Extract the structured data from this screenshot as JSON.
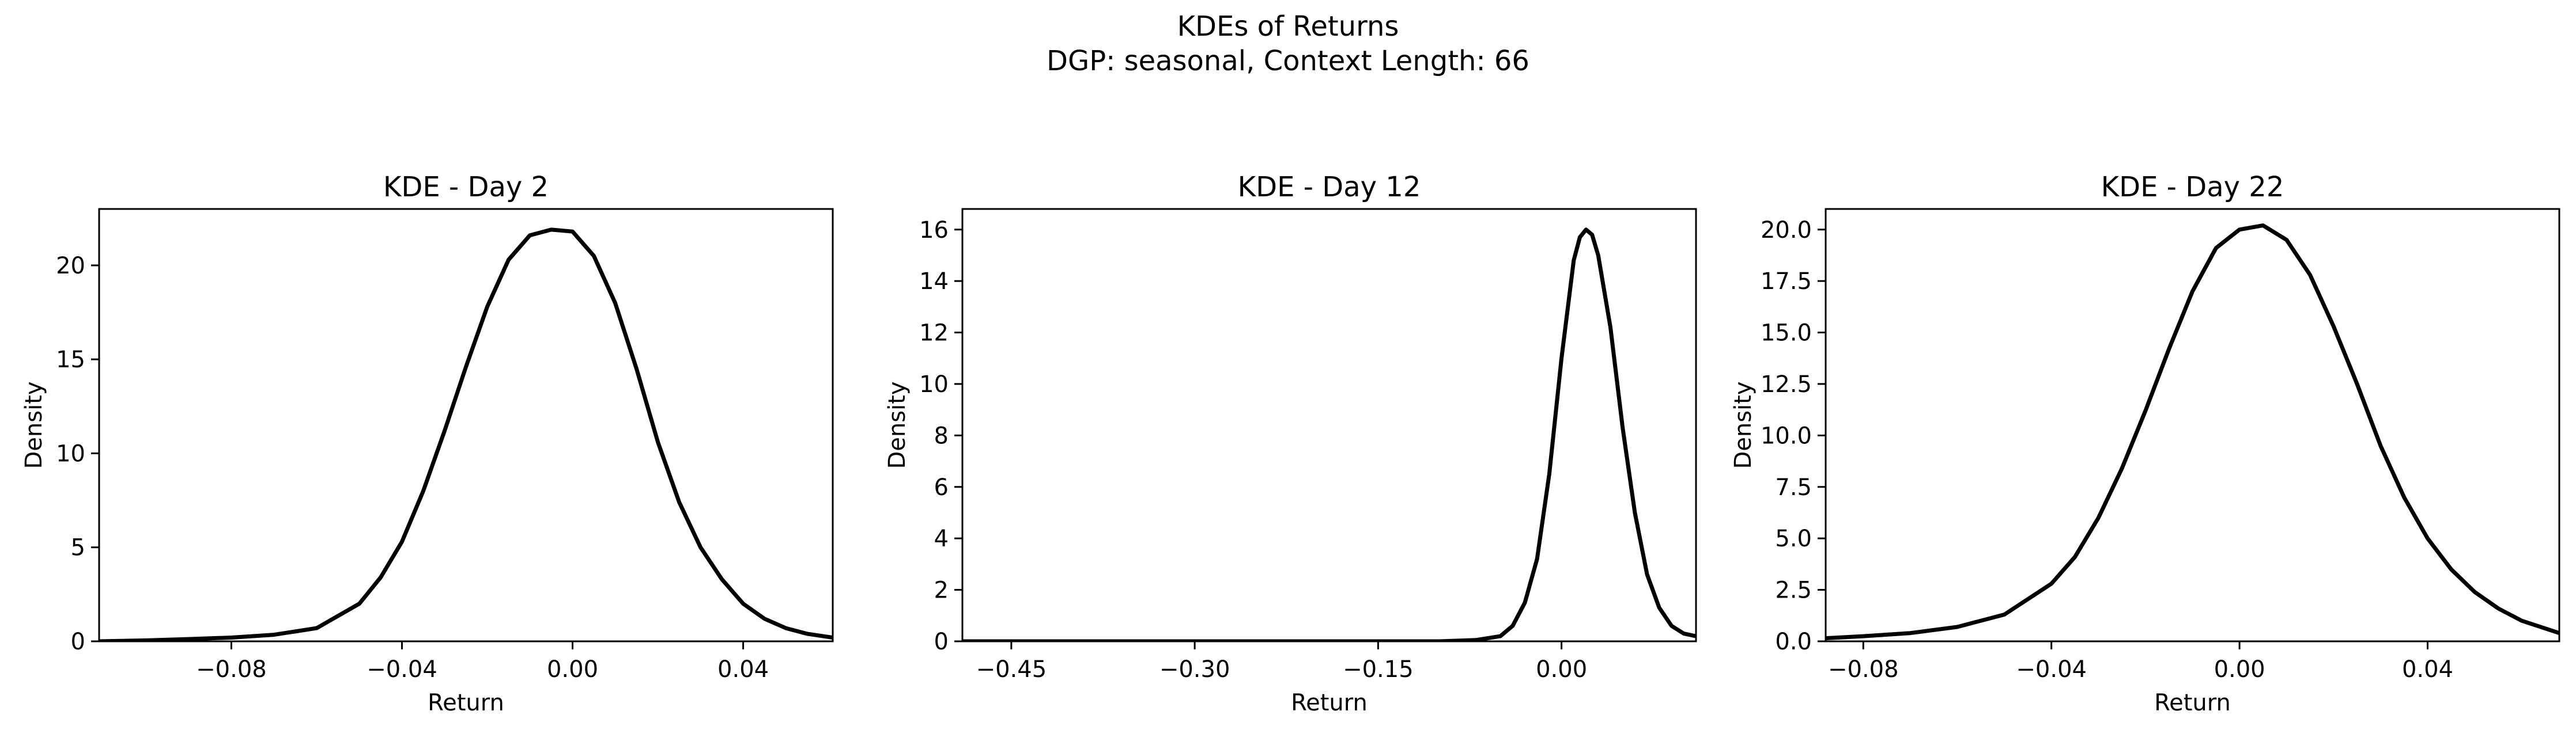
{
  "figure": {
    "suptitle_line1": "KDEs of Returns",
    "suptitle_line2": "DGP: seasonal, Context Length: 66"
  },
  "chart_data": [
    {
      "type": "line",
      "title": "KDE - Day 2",
      "xlabel": "Return",
      "ylabel": "Density",
      "xlim": [
        -0.111,
        0.061
      ],
      "ylim": [
        0,
        23
      ],
      "xticks": [
        -0.08,
        -0.04,
        0.0,
        0.04
      ],
      "xtick_labels": [
        "−0.08",
        "−0.04",
        "0.00",
        "0.04"
      ],
      "yticks": [
        0,
        5,
        10,
        15,
        20
      ],
      "ytick_labels": [
        "0",
        "5",
        "10",
        "15",
        "20"
      ],
      "grid": false,
      "series": [
        {
          "color": "#000000",
          "x": [
            -0.111,
            -0.1,
            -0.09,
            -0.08,
            -0.07,
            -0.06,
            -0.05,
            -0.045,
            -0.04,
            -0.035,
            -0.03,
            -0.025,
            -0.02,
            -0.015,
            -0.01,
            -0.005,
            0.0,
            0.005,
            0.01,
            0.015,
            0.02,
            0.025,
            0.03,
            0.035,
            0.04,
            0.045,
            0.05,
            0.055,
            0.061
          ],
          "y": [
            0.0,
            0.05,
            0.12,
            0.2,
            0.35,
            0.7,
            2.0,
            3.4,
            5.3,
            8.0,
            11.2,
            14.6,
            17.8,
            20.3,
            21.6,
            21.9,
            21.8,
            20.5,
            18.0,
            14.5,
            10.6,
            7.4,
            5.0,
            3.3,
            2.0,
            1.2,
            0.7,
            0.4,
            0.2
          ]
        }
      ]
    },
    {
      "type": "line",
      "title": "KDE - Day 12",
      "xlabel": "Return",
      "ylabel": "Density",
      "xlim": [
        -0.49,
        0.11
      ],
      "ylim": [
        0,
        16.8
      ],
      "xticks": [
        -0.45,
        -0.3,
        -0.15,
        0.0
      ],
      "xtick_labels": [
        "−0.45",
        "−0.30",
        "−0.15",
        "0.00"
      ],
      "yticks": [
        0,
        2,
        4,
        6,
        8,
        10,
        12,
        14,
        16
      ],
      "ytick_labels": [
        "0",
        "2",
        "4",
        "6",
        "8",
        "10",
        "12",
        "14",
        "16"
      ],
      "grid": false,
      "series": [
        {
          "color": "#000000",
          "x": [
            -0.49,
            -0.4,
            -0.3,
            -0.2,
            -0.1,
            -0.07,
            -0.05,
            -0.04,
            -0.03,
            -0.02,
            -0.01,
            0.0,
            0.01,
            0.015,
            0.02,
            0.025,
            0.03,
            0.04,
            0.05,
            0.06,
            0.07,
            0.08,
            0.09,
            0.1,
            0.11
          ],
          "y": [
            0.0,
            0.0,
            0.0,
            0.0,
            0.0,
            0.05,
            0.2,
            0.6,
            1.5,
            3.2,
            6.5,
            11.0,
            14.8,
            15.7,
            16.0,
            15.8,
            15.0,
            12.2,
            8.3,
            5.0,
            2.6,
            1.3,
            0.6,
            0.3,
            0.2
          ]
        }
      ]
    },
    {
      "type": "line",
      "title": "KDE - Day 22",
      "xlabel": "Return",
      "ylabel": "Density",
      "xlim": [
        -0.088,
        0.068
      ],
      "ylim": [
        0,
        21.0
      ],
      "xticks": [
        -0.08,
        -0.04,
        0.0,
        0.04
      ],
      "xtick_labels": [
        "−0.08",
        "−0.04",
        "0.00",
        "0.04"
      ],
      "yticks": [
        0,
        2.5,
        5,
        7.5,
        10,
        12.5,
        15,
        17.5,
        20
      ],
      "ytick_labels": [
        "0.0",
        "2.5",
        "5.0",
        "7.5",
        "10.0",
        "12.5",
        "15.0",
        "17.5",
        "20.0"
      ],
      "grid": false,
      "series": [
        {
          "color": "#000000",
          "x": [
            -0.088,
            -0.08,
            -0.07,
            -0.06,
            -0.05,
            -0.04,
            -0.035,
            -0.03,
            -0.025,
            -0.02,
            -0.015,
            -0.01,
            -0.005,
            0.0,
            0.005,
            0.01,
            0.015,
            0.02,
            0.025,
            0.03,
            0.035,
            0.04,
            0.045,
            0.05,
            0.055,
            0.06,
            0.068
          ],
          "y": [
            0.15,
            0.25,
            0.4,
            0.7,
            1.3,
            2.8,
            4.1,
            6.0,
            8.4,
            11.2,
            14.2,
            17.0,
            19.1,
            20.0,
            20.2,
            19.5,
            17.8,
            15.3,
            12.5,
            9.5,
            7.0,
            5.0,
            3.5,
            2.4,
            1.6,
            1.0,
            0.4
          ]
        }
      ]
    }
  ]
}
